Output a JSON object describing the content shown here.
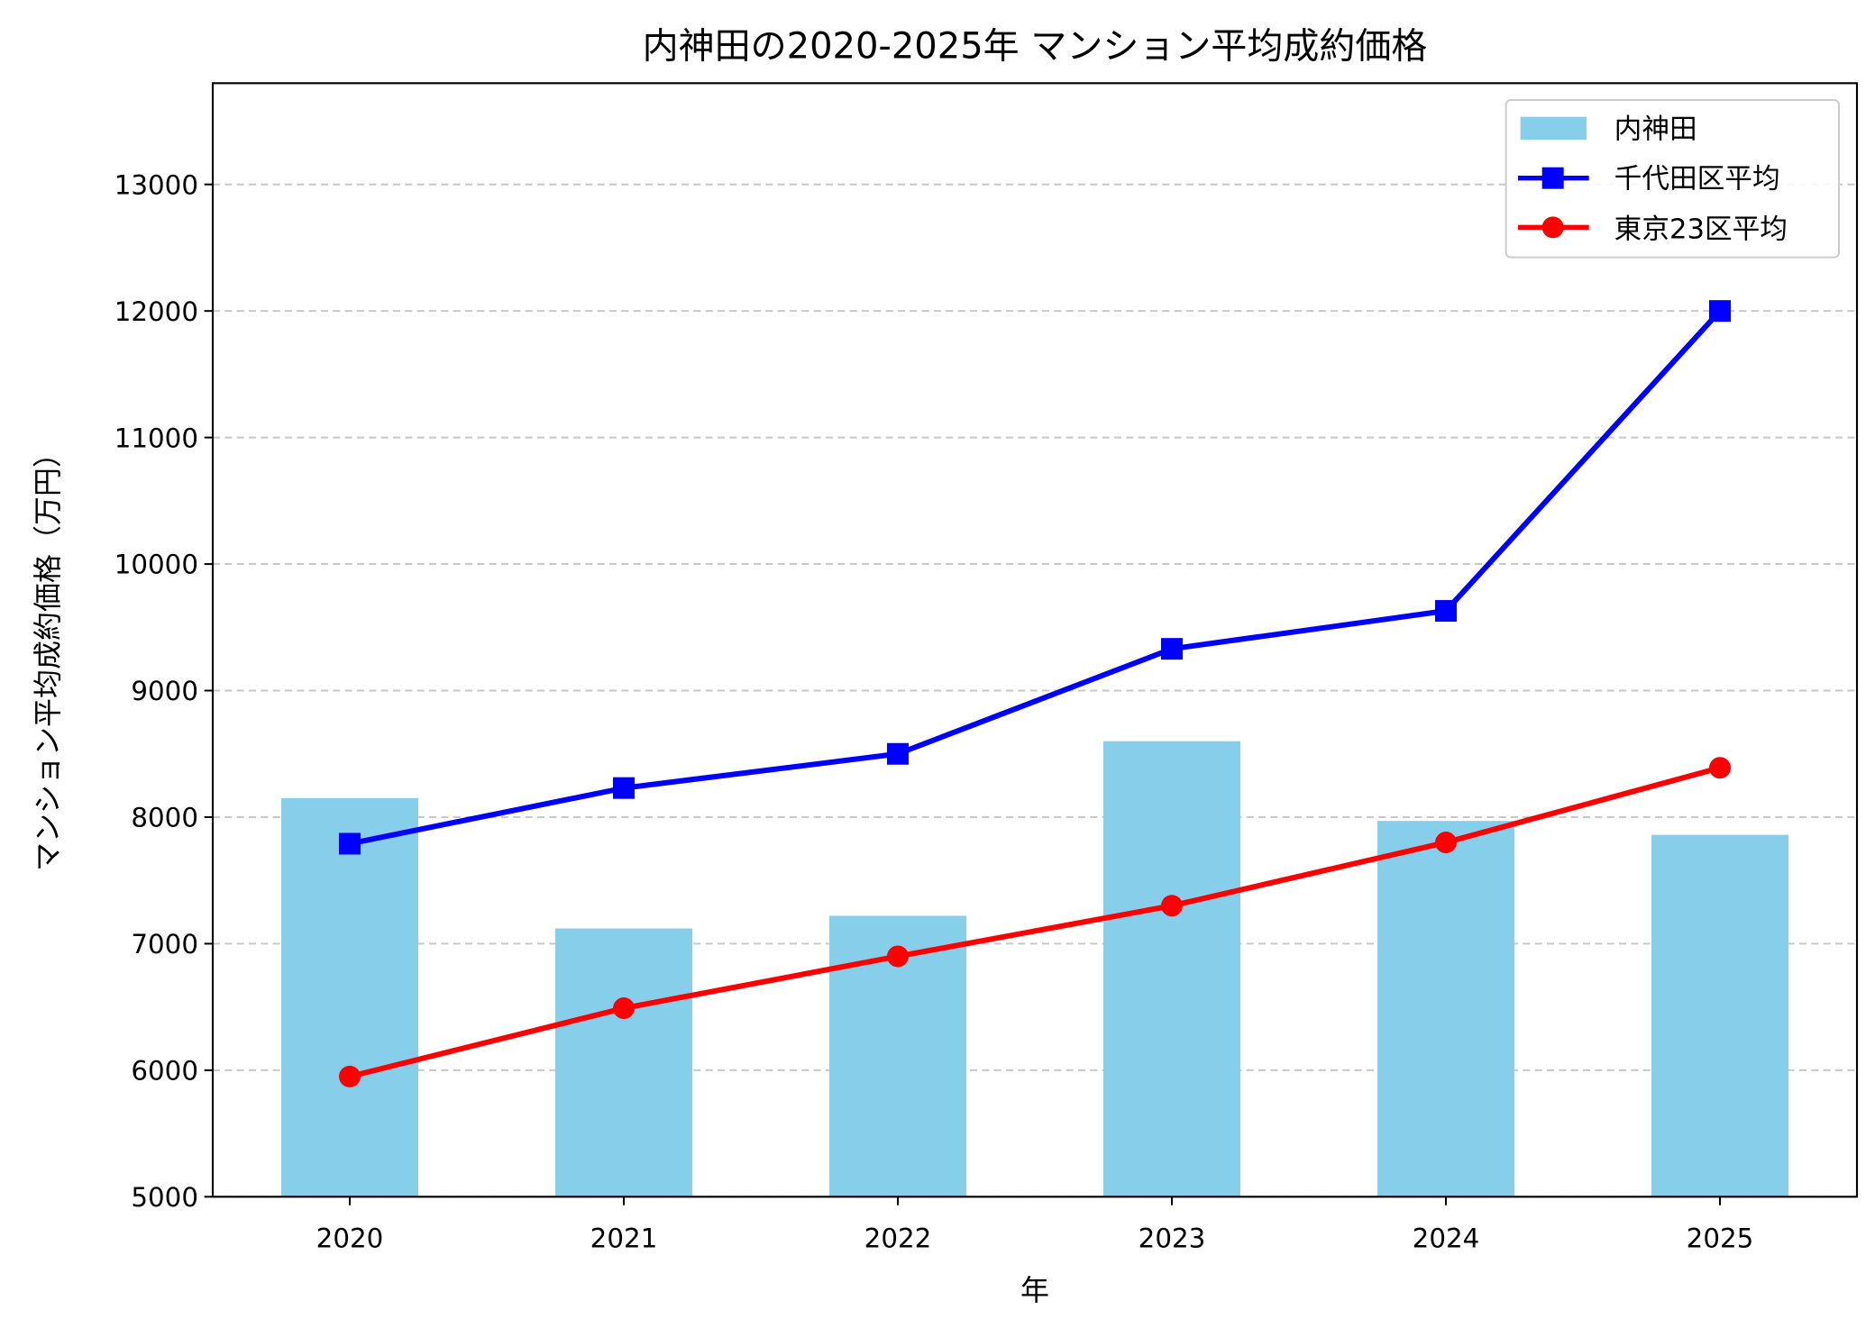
{
  "chart_data": {
    "type": "bar+line",
    "title": "内神田の2020-2025年 マンション平均成約価格",
    "xlabel": "年",
    "ylabel": "マンション平均成約価格（万円）",
    "categories": [
      "2020",
      "2021",
      "2022",
      "2023",
      "2024",
      "2025"
    ],
    "ylim": [
      5000,
      13800
    ],
    "yticks": [
      5000,
      6000,
      7000,
      8000,
      9000,
      10000,
      11000,
      12000,
      13000
    ],
    "grid": "y dashed",
    "legend_position": "top-right",
    "series": [
      {
        "name": "内神田",
        "kind": "bar",
        "color": "#87CEEB",
        "values": [
          8150,
          7120,
          7220,
          8600,
          7970,
          7860
        ]
      },
      {
        "name": "千代田区平均",
        "kind": "line",
        "marker": "square",
        "color": "#0000FF",
        "values": [
          7790,
          8230,
          8500,
          9330,
          9630,
          12000
        ]
      },
      {
        "name": "東京23区平均",
        "kind": "line",
        "marker": "circle",
        "color": "#FF0000",
        "values": [
          5950,
          6490,
          6900,
          7300,
          7800,
          8390
        ]
      }
    ]
  }
}
